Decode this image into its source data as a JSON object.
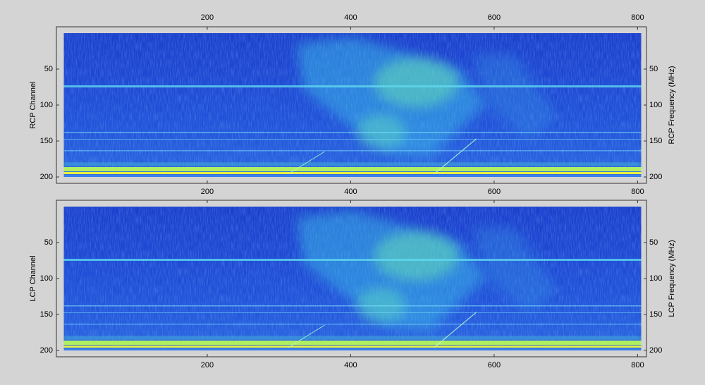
{
  "chart_data": [
    {
      "type": "spectrogram",
      "ylabel": "RCP Channel",
      "y2label": "RCP Frequency (MHz)",
      "xlim": [
        0,
        805
      ],
      "xticks": [
        200,
        400,
        600,
        800
      ],
      "xtick_labels": "both",
      "ylim": [
        0,
        200
      ],
      "yticks": [
        50,
        100,
        150,
        200
      ],
      "y_inverted": true
    },
    {
      "type": "spectrogram",
      "ylabel": "LCP Channel",
      "y2label": "LCP Frequency (MHz)",
      "xlim": [
        0,
        805
      ],
      "xticks": [
        200,
        400,
        600,
        800
      ],
      "xtick_labels": "bottom",
      "ylim": [
        0,
        200
      ],
      "yticks": [
        50,
        100,
        150,
        200
      ],
      "y_inverted": true
    }
  ]
}
